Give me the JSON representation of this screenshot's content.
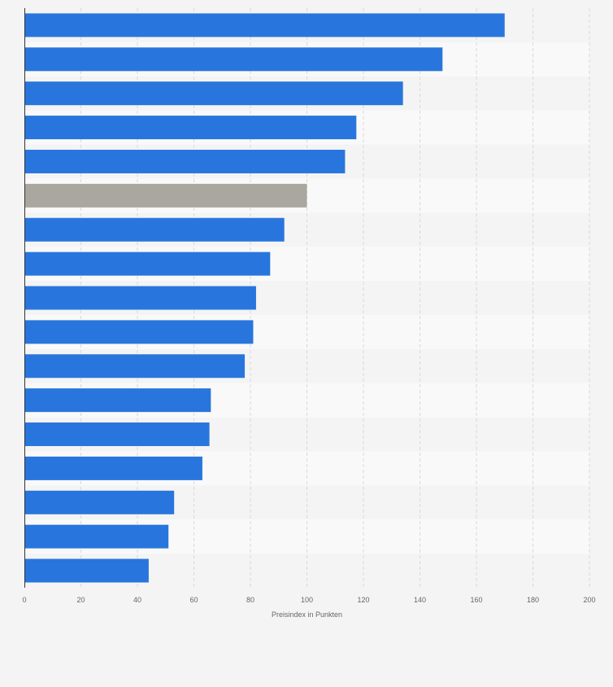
{
  "colors": {
    "background": "#f4f4f4",
    "band_alt": "#f9f9f9",
    "bar": "#2876dd",
    "bar_highlight": "#a9a79e",
    "grid": "#d9d9d9",
    "axis": "#333333",
    "tick_text": "#666666"
  },
  "chart_data": {
    "type": "bar",
    "orientation": "horizontal",
    "title": "",
    "xlabel": "Preisindex in Punkten",
    "ylabel": "",
    "xlim": [
      0,
      200
    ],
    "xticks": [
      0,
      20,
      40,
      60,
      80,
      100,
      120,
      140,
      160,
      180,
      200
    ],
    "grid": true,
    "categories": [
      "",
      "",
      "",
      "",
      "",
      "",
      "",
      "",
      "",
      "",
      "",
      "",
      "",
      "",
      "",
      "",
      ""
    ],
    "values": [
      170,
      148,
      134,
      117.5,
      113.5,
      100,
      92,
      87,
      82,
      81,
      78,
      66,
      65.5,
      63,
      53,
      51,
      44
    ],
    "highlighted_index": 5
  }
}
